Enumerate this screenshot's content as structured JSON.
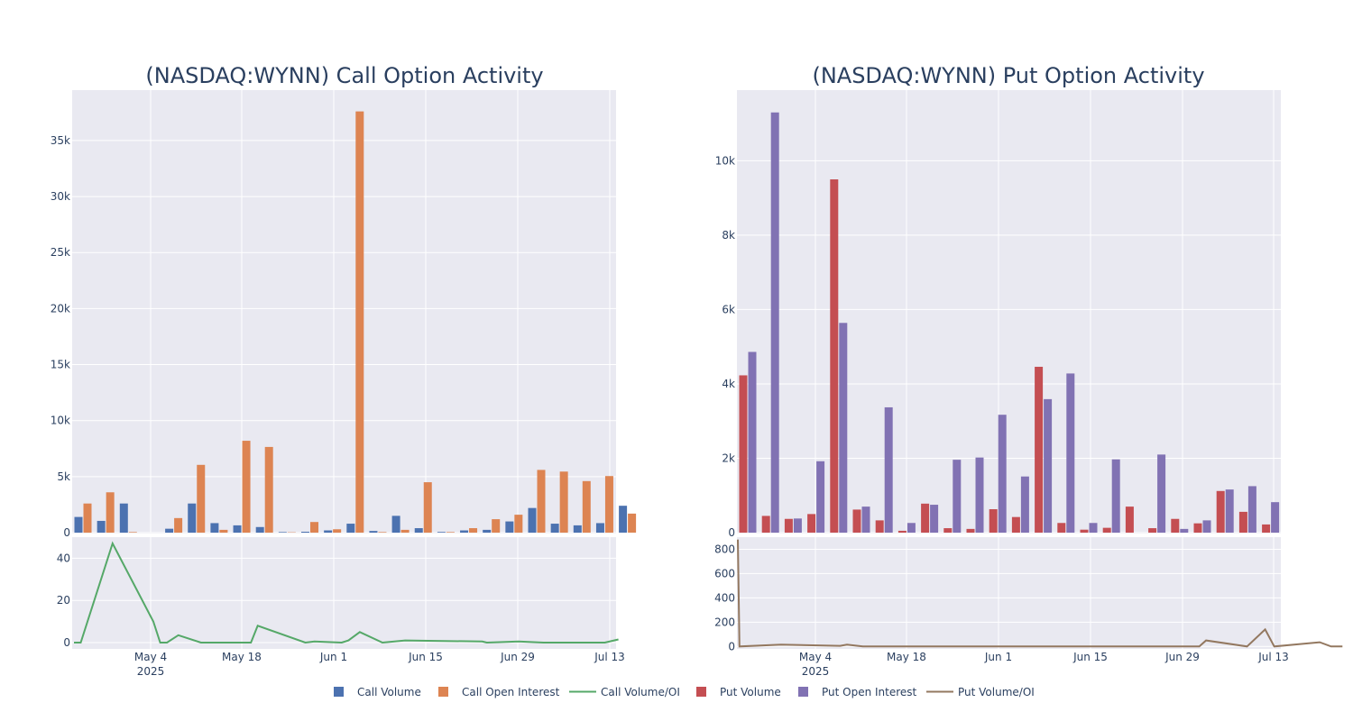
{
  "colors": {
    "plot_bg": "#e9e9f1",
    "grid": "#ffffff",
    "text": "#2a3f5f",
    "call_volume": "#4c72b0",
    "call_oi": "#dd8452",
    "call_ratio": "#55a868",
    "put_volume": "#c44e52",
    "put_oi": "#8172b3",
    "put_ratio": "#937860"
  },
  "chart_data": [
    {
      "type": "bar",
      "title": "(NASDAQ:WYNN) Call Option Activity",
      "x_ticks": [
        "May 4",
        "May 18",
        "Jun 1",
        "Jun 15",
        "Jun 29",
        "Jul 13"
      ],
      "x_tick_year": "2025",
      "y_ticks": [
        "0",
        "5k",
        "10k",
        "15k",
        "20k",
        "25k",
        "30k",
        "35k"
      ],
      "ylim": [
        0,
        39500
      ],
      "series": [
        {
          "name": "Call Volume",
          "values": [
            1400,
            1050,
            2600,
            0,
            350,
            2600,
            850,
            650,
            500,
            50,
            80,
            200,
            800,
            150,
            1500,
            400,
            60,
            200,
            250,
            1000,
            2200,
            800,
            650,
            850,
            2400
          ]
        },
        {
          "name": "Call Open Interest",
          "values": [
            2600,
            3600,
            50,
            0,
            1300,
            6050,
            250,
            8200,
            7650,
            30,
            950,
            300,
            37600,
            50,
            250,
            4500,
            50,
            400,
            1200,
            1600,
            5600,
            5450,
            4600,
            5050,
            1700
          ]
        }
      ],
      "ratio": {
        "name": "Call Volume/OI",
        "y_ticks": [
          "0",
          "20",
          "40"
        ],
        "ylim": [
          -3,
          50
        ],
        "points": [
          [
            0,
            0
          ],
          [
            0.3,
            0
          ],
          [
            1.7,
            47
          ],
          [
            3.5,
            10
          ],
          [
            3.8,
            0
          ],
          [
            4.1,
            0
          ],
          [
            4.6,
            3.5
          ],
          [
            5.6,
            0
          ],
          [
            7.8,
            0
          ],
          [
            8.1,
            8
          ],
          [
            10.2,
            0
          ],
          [
            10.6,
            0.5
          ],
          [
            11.8,
            0
          ],
          [
            12.1,
            1
          ],
          [
            12.6,
            5
          ],
          [
            13.6,
            0
          ],
          [
            14.6,
            1
          ],
          [
            18.0,
            0.5
          ],
          [
            18.2,
            0
          ],
          [
            19.6,
            0.5
          ],
          [
            20.7,
            0
          ],
          [
            23.4,
            0
          ],
          [
            24.0,
            1.5
          ]
        ]
      }
    },
    {
      "type": "bar",
      "title": "(NASDAQ:WYNN) Put Option Activity",
      "x_ticks": [
        "May 4",
        "May 18",
        "Jun 1",
        "Jun 15",
        "Jun 29",
        "Jul 13"
      ],
      "x_tick_year": "2025",
      "y_ticks": [
        "0",
        "2k",
        "4k",
        "6k",
        "8k",
        "10k"
      ],
      "ylim": [
        0,
        11900
      ],
      "series": [
        {
          "name": "Put Volume",
          "values": [
            4230,
            450,
            370,
            500,
            9500,
            620,
            330,
            50,
            780,
            120,
            100,
            630,
            420,
            4460,
            260,
            80,
            130,
            700,
            120,
            370,
            250,
            1120,
            560,
            220
          ]
        },
        {
          "name": "Put Open Interest",
          "values": [
            4860,
            11300,
            380,
            1920,
            5640,
            700,
            3370,
            260,
            750,
            1960,
            2020,
            3170,
            1510,
            3590,
            4280,
            260,
            1970,
            0,
            2100,
            100,
            330,
            1160,
            1250,
            820
          ]
        }
      ],
      "ratio": {
        "name": "Put Volume/OI",
        "y_ticks": [
          "0",
          "200",
          "400",
          "600",
          "800"
        ],
        "ylim": [
          -20,
          900
        ],
        "points": [
          [
            0,
            880
          ],
          [
            0.07,
            0
          ],
          [
            1.9,
            15
          ],
          [
            4.5,
            5
          ],
          [
            4.8,
            15
          ],
          [
            5.5,
            0
          ],
          [
            20.3,
            0
          ],
          [
            20.6,
            50
          ],
          [
            22.4,
            0
          ],
          [
            23.2,
            140
          ],
          [
            23.6,
            0
          ],
          [
            25.6,
            35
          ],
          [
            26.1,
            0
          ],
          [
            26.6,
            0
          ]
        ]
      }
    }
  ]
}
